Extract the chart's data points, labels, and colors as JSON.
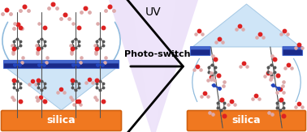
{
  "title": "UV",
  "arrow_label": "Photo-switch",
  "silica_label": "silica",
  "bg_color": "#ffffff",
  "silica_color": "#f07820",
  "silica_border": "#d06010",
  "bar_color": "#1a2a8a",
  "bar_top_color": "#4466cc",
  "uv_color": "#ddc8f5",
  "uv_inner_color": "#f0e8fc",
  "blue_cone_color": "#c0ddf5",
  "blue_cone_edge": "#90bbdd",
  "title_fontsize": 10,
  "label_fontsize": 9,
  "arrow_fontsize": 8,
  "atom_dark": "#555555",
  "atom_red": "#dd2222",
  "atom_pink": "#ddaaaa",
  "atom_blue": "#2244bb",
  "atom_white": "#eeeeee"
}
